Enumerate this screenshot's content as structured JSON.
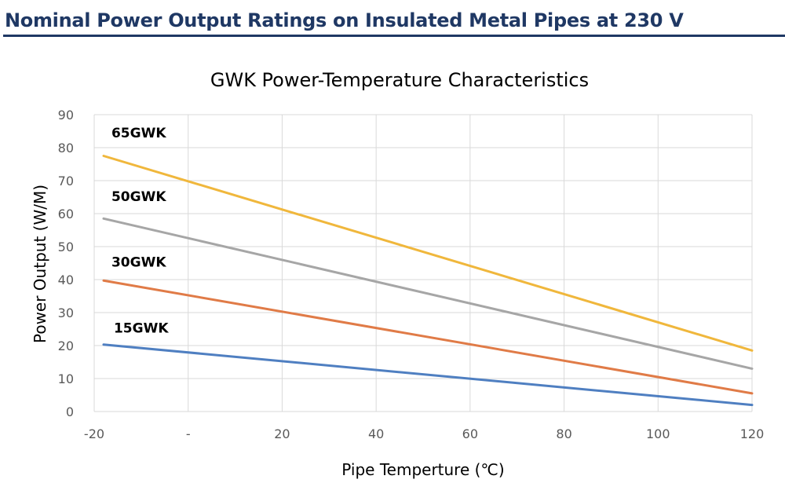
{
  "header": {
    "title": "Nominal Power Output Ratings on Insulated Metal Pipes at 230 V"
  },
  "colors": {
    "title": "#1f3864",
    "grid": "#d9d9d9",
    "text": "#595959",
    "label": "#000000"
  },
  "chart_data": {
    "type": "line",
    "title": "GWK Power-Temperature Characteristics",
    "xlabel": "Pipe Temperture (℃)",
    "ylabel": "Power Output (W/M)",
    "xlim": [
      -20,
      120
    ],
    "ylim": [
      0,
      90
    ],
    "x_ticks": [
      -20,
      0,
      20,
      40,
      60,
      80,
      100,
      120
    ],
    "x_tick_labels": [
      "-20",
      "-",
      "20",
      "40",
      "60",
      "80",
      "100",
      "120"
    ],
    "y_ticks": [
      0,
      10,
      20,
      30,
      40,
      50,
      60,
      70,
      80,
      90
    ],
    "y_tick_labels": [
      "0",
      "10",
      "20",
      "30",
      "40",
      "50",
      "60",
      "70",
      "80",
      "90"
    ],
    "grid": true,
    "series": [
      {
        "name": "65GWK",
        "color": "#f0b73c",
        "x": [
          -18,
          120
        ],
        "y": [
          77.5,
          18.5
        ]
      },
      {
        "name": "50GWK",
        "color": "#a6a6a6",
        "x": [
          -18,
          120
        ],
        "y": [
          58.5,
          13
        ]
      },
      {
        "name": "30GWK",
        "color": "#e07b47",
        "x": [
          -18,
          120
        ],
        "y": [
          39.7,
          5.5
        ]
      },
      {
        "name": "15GWK",
        "color": "#4f7fc1",
        "x": [
          -18,
          120
        ],
        "y": [
          20.3,
          2
        ]
      }
    ],
    "series_label_offsets": [
      {
        "name": "65GWK",
        "dx": -4,
        "y": 84.5
      },
      {
        "name": "50GWK",
        "dx": -4,
        "y": 65.2
      },
      {
        "name": "30GWK",
        "dx": -4,
        "y": 45.3
      },
      {
        "name": "15GWK",
        "dx": -1,
        "y": 25.4
      }
    ]
  }
}
